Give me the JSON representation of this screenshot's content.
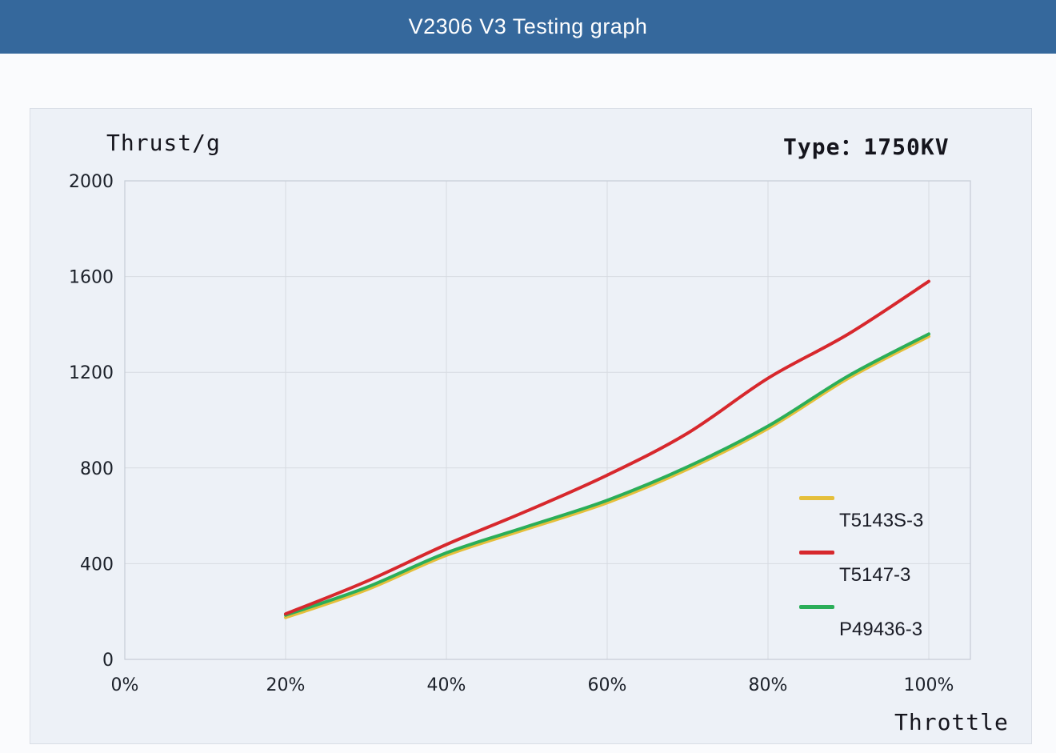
{
  "header": {
    "title": "V2306 V3 Testing graph"
  },
  "colors": {
    "header_bg": "#35689c",
    "header_text": "#ffffff",
    "panel_bg": "#edf1f7",
    "page_bg": "#fafbfd",
    "grid": "#d7dbe2",
    "axis_border": "#c6ccd6",
    "tick_text": "#1b2029"
  },
  "chart_data": {
    "type": "line",
    "title": "V2306 V3 Testing graph",
    "ylabel": "Thrust/g",
    "xlabel": "Throttle",
    "annotation": "Type：1750KV",
    "x": [
      20,
      30,
      40,
      50,
      60,
      70,
      80,
      90,
      100
    ],
    "x_unit": "percent throttle",
    "xlim": [
      0,
      100
    ],
    "ylim": [
      0,
      2000
    ],
    "xticks": [
      0,
      20,
      40,
      60,
      80,
      100
    ],
    "xtick_labels": [
      "0%",
      "20%",
      "40%",
      "60%",
      "80%",
      "100%"
    ],
    "yticks": [
      0,
      400,
      800,
      1200,
      1600,
      2000
    ],
    "ytick_labels": [
      "0",
      "400",
      "800",
      "1200",
      "1600",
      "2000"
    ],
    "grid": true,
    "legend_position": "inside-right",
    "series": [
      {
        "name": "T5143S-3",
        "color": "#e5bf3b",
        "values": [
          175,
          290,
          435,
          545,
          655,
          795,
          965,
          1175,
          1350
        ]
      },
      {
        "name": "T5147-3",
        "color": "#d7282d",
        "values": [
          190,
          325,
          480,
          620,
          770,
          945,
          1175,
          1360,
          1580
        ]
      },
      {
        "name": "P49436-3",
        "color": "#2bae59",
        "values": [
          185,
          300,
          445,
          555,
          665,
          805,
          975,
          1185,
          1360
        ]
      }
    ]
  }
}
